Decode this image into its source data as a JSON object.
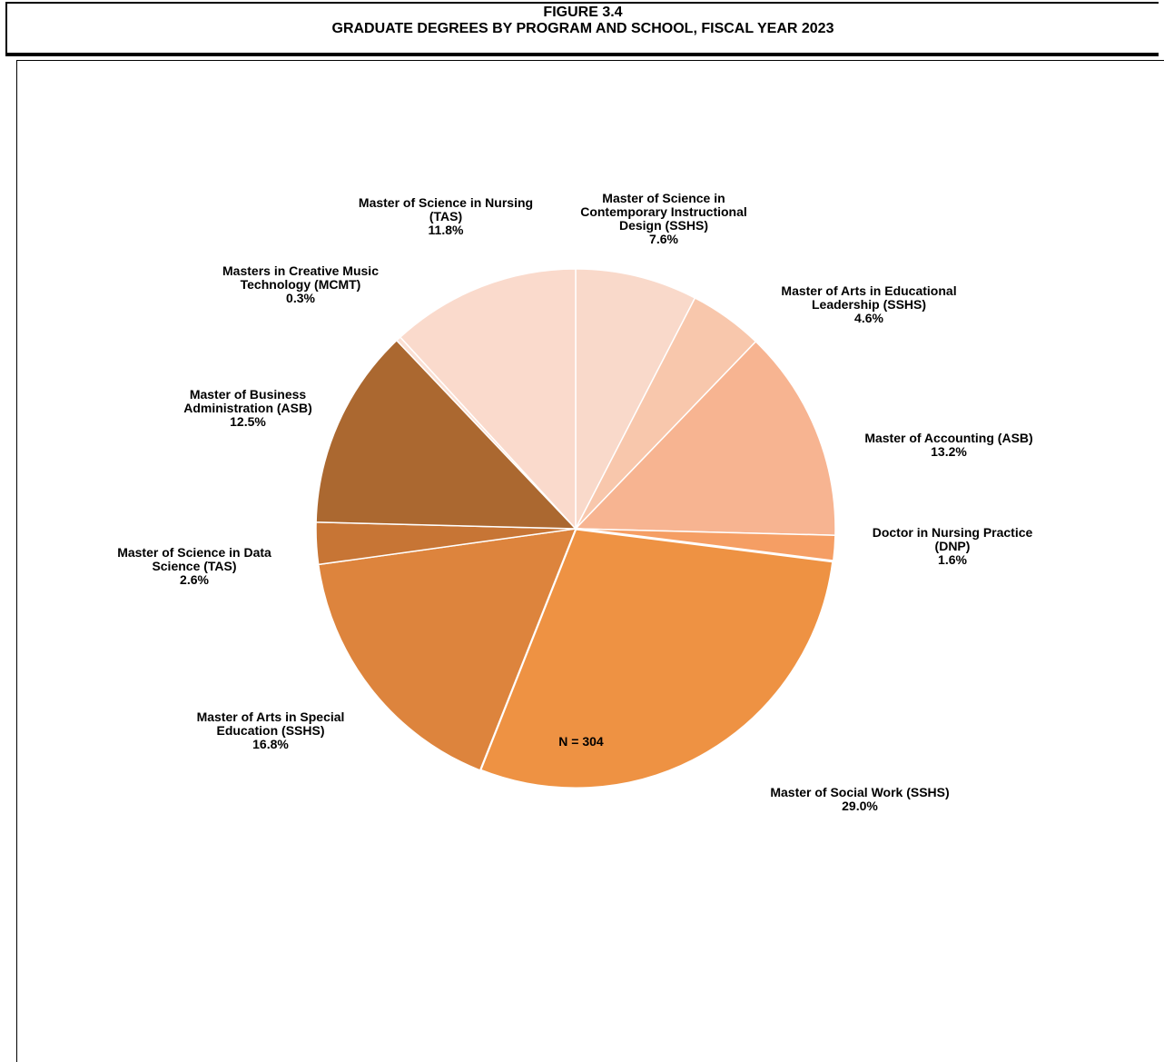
{
  "figure": {
    "number": "FIGURE 3.4",
    "title": "GRADUATE DEGREES BY PROGRAM AND SCHOOL, FISCAL YEAR 2023"
  },
  "note": "N = 304",
  "chart_data": {
    "type": "pie",
    "title": "GRADUATE DEGREES BY PROGRAM AND SCHOOL, FISCAL YEAR 2023",
    "total_n": 304,
    "start_angle_deg": 0,
    "direction": "clockwise",
    "slices": [
      {
        "label_lines": [
          "Master of Science in",
          "Contemporary Instructional",
          "Design (SSHS)"
        ],
        "value": 7.6,
        "pct_label": "7.6%",
        "color": "#F9D9CA"
      },
      {
        "label_lines": [
          "Master of Arts in Educational",
          "Leadership  (SSHS)"
        ],
        "value": 4.6,
        "pct_label": "4.6%",
        "color": "#F8C7AC"
      },
      {
        "label_lines": [
          "Master of Accounting (ASB)"
        ],
        "value": 13.2,
        "pct_label": "13.2%",
        "color": "#F7B491"
      },
      {
        "label_lines": [
          "Doctor in Nursing Practice",
          "(DNP)"
        ],
        "value": 1.6,
        "pct_label": "1.6%",
        "color": "#F59E64"
      },
      {
        "label_lines": [
          "Master of Social Work (SSHS)"
        ],
        "value": 29.0,
        "pct_label": "29.0%",
        "color": "#EE9243"
      },
      {
        "label_lines": [
          "Master of Arts in Special",
          "Education (SSHS)"
        ],
        "value": 16.8,
        "pct_label": "16.8%",
        "color": "#DD843D"
      },
      {
        "label_lines": [
          "Master of Science in Data",
          "Science (TAS)"
        ],
        "value": 2.6,
        "pct_label": "2.6%",
        "color": "#C77535"
      },
      {
        "label_lines": [
          "Master of Business",
          "Administration (ASB)"
        ],
        "value": 12.5,
        "pct_label": "12.5%",
        "color": "#AB6830"
      },
      {
        "label_lines": [
          "Masters in Creative Music",
          "Technology (MCMT)"
        ],
        "value": 0.3,
        "pct_label": "0.3%",
        "color": "#FBE0D4"
      },
      {
        "label_lines": [
          "Master of Science in Nursing",
          "(TAS)"
        ],
        "value": 11.8,
        "pct_label": "11.8%",
        "color": "#FADACC"
      }
    ]
  }
}
